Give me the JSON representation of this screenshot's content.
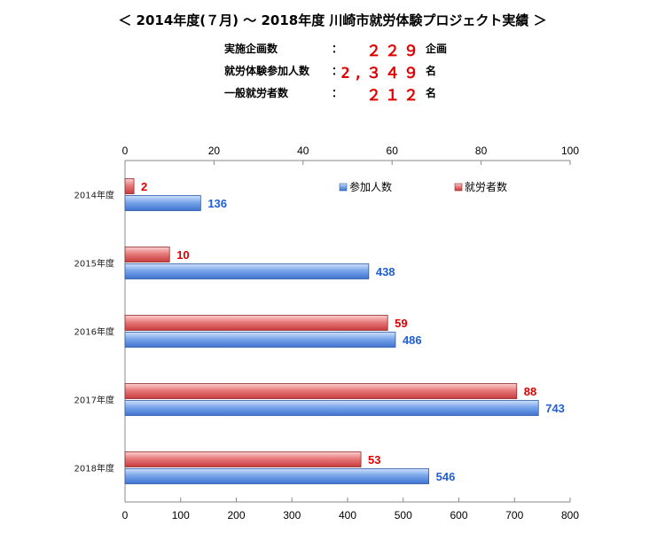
{
  "header": {
    "title": "＜  2014年度(７月) ～ 2018年度 川崎市就労体験プロジェクト実績  ＞",
    "stats": [
      {
        "label": "実施企画数",
        "colon": "：",
        "value": "２２９",
        "unit": "企画"
      },
      {
        "label": "就労体験参加人数",
        "colon": "：",
        "value": "2,３４９",
        "unit": "名"
      },
      {
        "label": "一般就労者数",
        "colon": "：",
        "value": "２１２",
        "unit": "名"
      }
    ]
  },
  "colors": {
    "employed": "#e8595b",
    "participants": "#5b8fe0",
    "employed_label": "#e00000",
    "participants_label": "#1f5fd6"
  },
  "chart_data": {
    "type": "bar",
    "orientation": "horizontal",
    "categories": [
      "2014年度",
      "2015年度",
      "2016年度",
      "2017年度",
      "2018年度"
    ],
    "series": [
      {
        "name": "参加人数",
        "axis": "bottom",
        "values": [
          136,
          438,
          486,
          743,
          546
        ]
      },
      {
        "name": "就労者数",
        "axis": "top",
        "values": [
          2,
          10,
          59,
          88,
          53
        ]
      }
    ],
    "top_axis": {
      "range": [
        0,
        100
      ],
      "ticks": [
        "0",
        "20",
        "40",
        "60",
        "80",
        "100"
      ]
    },
    "bottom_axis": {
      "range": [
        0,
        800
      ],
      "ticks": [
        "0",
        "100",
        "200",
        "300",
        "400",
        "500",
        "600",
        "700",
        "800"
      ]
    },
    "legend": {
      "position": "top-right",
      "items": [
        "参加人数",
        "就労者数"
      ]
    },
    "grid": false
  }
}
